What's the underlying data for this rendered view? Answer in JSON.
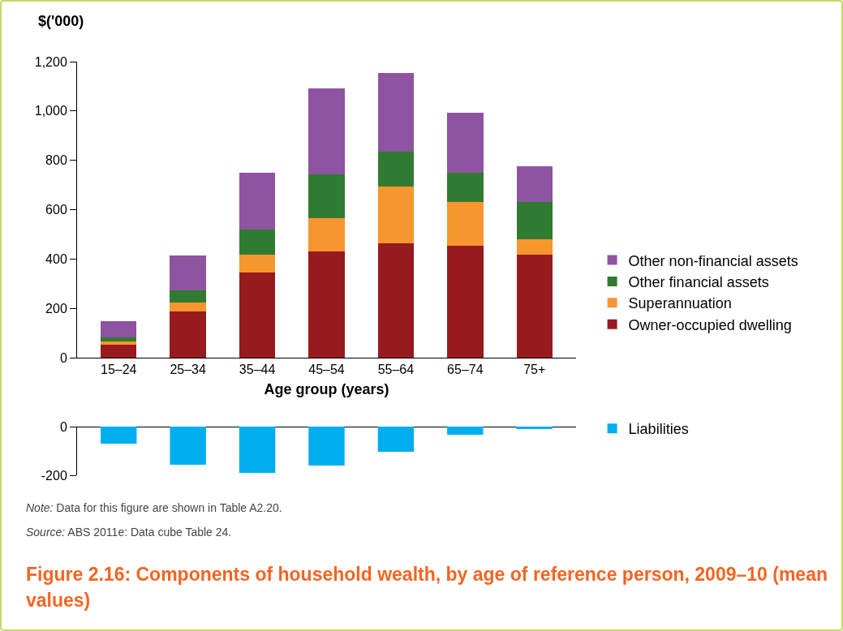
{
  "chart_data": [
    {
      "type": "bar",
      "title": "Figure 2.16: Components of household wealth, by age of reference person, 2009–10 (mean values)",
      "ylabel": "$('000)",
      "xlabel": "Age group (years)",
      "categories": [
        "15–24",
        "25–34",
        "35–44",
        "45–54",
        "55–64",
        "65–74",
        "75+"
      ],
      "stacked": true,
      "series": [
        {
          "name": "Owner-occupied dwelling",
          "color": "#971b1e",
          "values": [
            53,
            187,
            345,
            431,
            464,
            454,
            418
          ]
        },
        {
          "name": "Superannuation",
          "color": "#f7962f",
          "values": [
            13,
            37,
            73,
            135,
            230,
            177,
            62
          ]
        },
        {
          "name": "Other financial assets",
          "color": "#317a32",
          "values": [
            16,
            49,
            102,
            177,
            141,
            119,
            151
          ]
        },
        {
          "name": "Other non-financial assets",
          "color": "#8e54a1",
          "values": [
            66,
            141,
            230,
            349,
            319,
            243,
            145
          ]
        }
      ],
      "ylim": [
        0,
        1200
      ],
      "yticks": [
        0,
        {
          "value": 200,
          "label": "200"
        },
        400,
        600,
        800,
        {
          "value": 1000,
          "label": "1,000"
        },
        {
          "value": 1200,
          "label": "1,200"
        }
      ],
      "grid": false,
      "legend": "right",
      "annotations": [
        "Note: Data for this figure are shown in Table A2.20.",
        "Source: ABS 2011e: Data cube Table 24."
      ]
    },
    {
      "type": "bar",
      "categories": [
        null,
        null,
        null,
        null,
        null,
        null,
        null
      ],
      "series": [
        {
          "name": "Liabilities",
          "color": "#00aeef",
          "values": [
            -70,
            -157,
            -190,
            -160,
            -103,
            -33,
            -10
          ]
        }
      ],
      "ylim": [
        -200,
        0
      ],
      "yticks": [
        -200,
        0
      ],
      "grid": false,
      "legend": "right",
      "tick_labels": "y"
    }
  ]
}
